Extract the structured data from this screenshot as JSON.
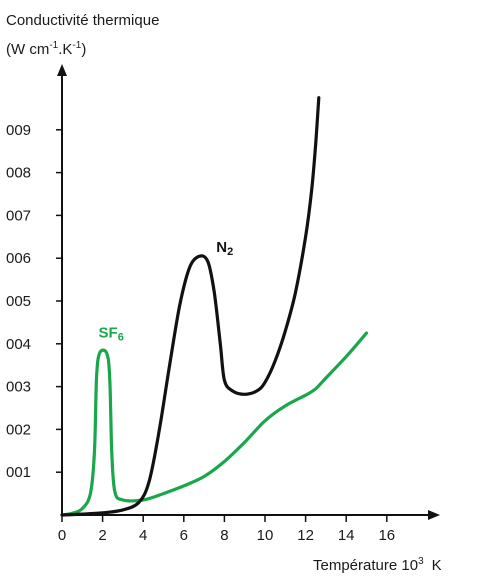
{
  "chart_data": {
    "type": "line",
    "title": "",
    "ylabel_line1": "Conductivité thermique",
    "ylabel_line2": "(W cm",
    "ylabel_sup1": "-1",
    "ylabel_mid": ".K",
    "ylabel_sup2": "-1",
    "ylabel_end": ")",
    "xlabel": "Température 10",
    "xlabel_sup": "3",
    "xlabel_unit": "K",
    "xlim": [
      0,
      18
    ],
    "ylim": [
      0,
      10
    ],
    "x_ticks": [
      0,
      2,
      4,
      6,
      8,
      10,
      12,
      14,
      16
    ],
    "y_ticks": [
      {
        "value": 1,
        "label": "001"
      },
      {
        "value": 2,
        "label": "002"
      },
      {
        "value": 3,
        "label": "003"
      },
      {
        "value": 4,
        "label": "004"
      },
      {
        "value": 5,
        "label": "005"
      },
      {
        "value": 6,
        "label": "006"
      },
      {
        "value": 7,
        "label": "007"
      },
      {
        "value": 8,
        "label": "008"
      },
      {
        "value": 9,
        "label": "009"
      }
    ],
    "grid": false,
    "legend": "none",
    "series": [
      {
        "name": "SF6",
        "label_main": "SF",
        "label_sub": "6",
        "color": "#1aa64b",
        "label_at": [
          1.8,
          4.15
        ],
        "points": [
          [
            0,
            0
          ],
          [
            0.5,
            0.04
          ],
          [
            1,
            0.15
          ],
          [
            1.4,
            0.5
          ],
          [
            1.6,
            1.5
          ],
          [
            1.7,
            3.2
          ],
          [
            1.85,
            3.78
          ],
          [
            2.2,
            3.78
          ],
          [
            2.35,
            3.2
          ],
          [
            2.45,
            1.5
          ],
          [
            2.6,
            0.55
          ],
          [
            3,
            0.35
          ],
          [
            4,
            0.35
          ],
          [
            5,
            0.5
          ],
          [
            6,
            0.68
          ],
          [
            7,
            0.9
          ],
          [
            8,
            1.25
          ],
          [
            9,
            1.7
          ],
          [
            10,
            2.2
          ],
          [
            11,
            2.55
          ],
          [
            12,
            2.8
          ],
          [
            12.5,
            2.95
          ],
          [
            13,
            3.2
          ],
          [
            14,
            3.7
          ],
          [
            15,
            4.25
          ]
        ]
      },
      {
        "name": "N2",
        "label_main": "N",
        "label_sub": "2",
        "color": "#111111",
        "label_at": [
          7.6,
          6.15
        ],
        "points": [
          [
            0,
            0
          ],
          [
            1,
            0.02
          ],
          [
            2,
            0.05
          ],
          [
            3,
            0.12
          ],
          [
            3.8,
            0.3
          ],
          [
            4.3,
            0.8
          ],
          [
            4.8,
            2
          ],
          [
            5.3,
            3.5
          ],
          [
            5.8,
            4.9
          ],
          [
            6.3,
            5.8
          ],
          [
            6.8,
            6.05
          ],
          [
            7.2,
            5.9
          ],
          [
            7.5,
            5.2
          ],
          [
            7.8,
            4
          ],
          [
            8,
            3.15
          ],
          [
            8.4,
            2.9
          ],
          [
            9,
            2.82
          ],
          [
            9.6,
            2.9
          ],
          [
            10,
            3.1
          ],
          [
            10.5,
            3.6
          ],
          [
            11,
            4.3
          ],
          [
            11.5,
            5.2
          ],
          [
            12,
            6.5
          ],
          [
            12.3,
            7.6
          ],
          [
            12.5,
            8.7
          ],
          [
            12.65,
            9.75
          ]
        ]
      }
    ]
  }
}
